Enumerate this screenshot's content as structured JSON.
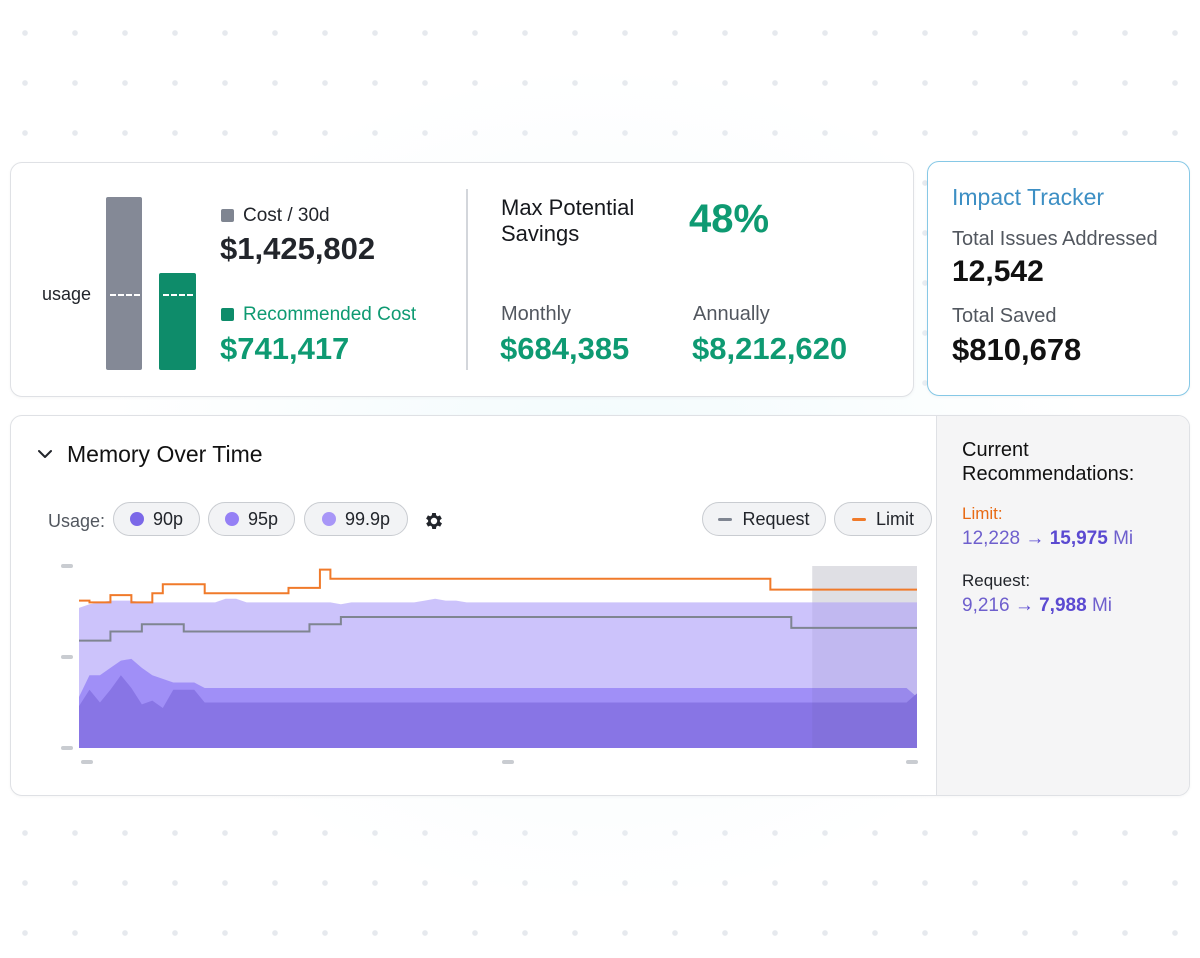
{
  "cost": {
    "bar_label": "usage",
    "cost_label": "Cost / 30d",
    "cost_value": "$1,425,802",
    "recommended_label": "Recommended Cost",
    "recommended_value": "$741,417",
    "colors": {
      "current": "#848996",
      "recommended": "#0e8c6a",
      "accent": "#0e9a72"
    }
  },
  "savings": {
    "title": "Max Potential Savings",
    "percent": "48%",
    "monthly_label": "Monthly",
    "monthly_value": "$684,385",
    "annual_label": "Annually",
    "annual_value": "$8,212,620"
  },
  "impact": {
    "title": "Impact Tracker",
    "issues_label": "Total Issues Addressed",
    "issues_value": "12,542",
    "saved_label": "Total Saved",
    "saved_value": "$810,678",
    "accent": "#3d8fc4"
  },
  "memory": {
    "title": "Memory Over Time",
    "usage_label": "Usage:",
    "percentiles": [
      {
        "label": "90p",
        "color": "#7b68e8"
      },
      {
        "label": "95p",
        "color": "#9580f5"
      },
      {
        "label": "99.9p",
        "color": "#a896f7"
      }
    ],
    "legend": [
      {
        "label": "Request",
        "color": "#7f8591"
      },
      {
        "label": "Limit",
        "color": "#f07a2a"
      }
    ],
    "recommendations": {
      "title": "Current Recommendations:",
      "limit_label": "Limit:",
      "limit_from": "12,228",
      "limit_to": "15,975",
      "limit_unit": "Mi",
      "request_label": "Request:",
      "request_from": "9,216",
      "request_to": "7,988",
      "request_unit": "Mi",
      "arrow": "→"
    }
  },
  "chart_data": {
    "type": "area",
    "title": "Memory Over Time",
    "xlabel": "",
    "ylabel": "",
    "x_ticks": [
      "",
      "",
      ""
    ],
    "y_ticks": [
      "",
      "",
      ""
    ],
    "ylim": [
      0,
      100
    ],
    "x": [
      0,
      1,
      2,
      3,
      4,
      5,
      6,
      7,
      8,
      9,
      10,
      11,
      12,
      13,
      14,
      15,
      16,
      17,
      18,
      19,
      20,
      21,
      22,
      23,
      24,
      25,
      26,
      27,
      28,
      29,
      30,
      31,
      32,
      33,
      34,
      35,
      36,
      37,
      38,
      39,
      40,
      41,
      42,
      43,
      44,
      45,
      46,
      47,
      48,
      49,
      50,
      51,
      52,
      53,
      54,
      55,
      56,
      57,
      58,
      59,
      60,
      61,
      62,
      63,
      64,
      65,
      66,
      67,
      68,
      69,
      70,
      71,
      72,
      73,
      74,
      75,
      76,
      77,
      78,
      79,
      80
    ],
    "shaded_region": [
      70,
      80
    ],
    "series": [
      {
        "name": "99.9p",
        "color": "#c9c0fb",
        "values": [
          77,
          79,
          80,
          81,
          81,
          81,
          80,
          80,
          80,
          80,
          80,
          80,
          80,
          80,
          82,
          82,
          80,
          80,
          80,
          80,
          80,
          80,
          80,
          80,
          80,
          79,
          80,
          80,
          80,
          80,
          80,
          80,
          80,
          81,
          82,
          81,
          81,
          80,
          80,
          80,
          80,
          80,
          80,
          80,
          80,
          80,
          80,
          80,
          80,
          80,
          80,
          80,
          80,
          80,
          80,
          80,
          80,
          80,
          80,
          80,
          80,
          80,
          80,
          80,
          80,
          80,
          80,
          80,
          80,
          80,
          80,
          80,
          80,
          80,
          80,
          80,
          80,
          80,
          80,
          80,
          80
        ]
      },
      {
        "name": "95p",
        "color": "#9d8cf7",
        "values": [
          28,
          40,
          40,
          44,
          48,
          49,
          44,
          40,
          38,
          36,
          36,
          36,
          33,
          33,
          33,
          33,
          33,
          33,
          33,
          33,
          33,
          33,
          33,
          33,
          33,
          33,
          33,
          33,
          33,
          33,
          33,
          33,
          33,
          33,
          33,
          33,
          33,
          33,
          33,
          33,
          33,
          33,
          33,
          33,
          33,
          33,
          33,
          33,
          33,
          33,
          33,
          33,
          33,
          33,
          33,
          33,
          33,
          33,
          33,
          33,
          33,
          33,
          33,
          33,
          33,
          33,
          33,
          33,
          33,
          33,
          33,
          33,
          33,
          33,
          33,
          33,
          33,
          33,
          33,
          33,
          28
        ]
      },
      {
        "name": "90p",
        "color": "#8774e4",
        "values": [
          23,
          32,
          25,
          32,
          40,
          33,
          24,
          26,
          22,
          32,
          32,
          32,
          25,
          25,
          25,
          25,
          25,
          25,
          25,
          25,
          25,
          25,
          25,
          25,
          25,
          25,
          25,
          25,
          25,
          25,
          25,
          25,
          25,
          25,
          25,
          25,
          25,
          25,
          25,
          25,
          25,
          25,
          25,
          25,
          25,
          25,
          25,
          25,
          25,
          25,
          25,
          25,
          25,
          25,
          25,
          25,
          25,
          25,
          25,
          25,
          25,
          25,
          25,
          25,
          25,
          25,
          25,
          25,
          25,
          25,
          25,
          25,
          25,
          25,
          25,
          25,
          25,
          25,
          25,
          25,
          30
        ]
      },
      {
        "name": "Request",
        "color": "#7f8591",
        "values": [
          59,
          59,
          59,
          64,
          64,
          64,
          68,
          68,
          68,
          68,
          64,
          64,
          64,
          64,
          64,
          64,
          64,
          64,
          64,
          64,
          64,
          64,
          68,
          68,
          68,
          72,
          72,
          72,
          72,
          72,
          72,
          72,
          72,
          72,
          72,
          72,
          72,
          72,
          72,
          72,
          72,
          72,
          72,
          72,
          72,
          72,
          72,
          72,
          72,
          72,
          72,
          72,
          72,
          72,
          72,
          72,
          72,
          72,
          72,
          72,
          72,
          72,
          72,
          72,
          72,
          72,
          72,
          72,
          66,
          66,
          66,
          66,
          66,
          66,
          66,
          66,
          66,
          66,
          66,
          66,
          66
        ]
      },
      {
        "name": "Limit",
        "color": "#f07a2a",
        "values": [
          81,
          80,
          80,
          84,
          84,
          80,
          80,
          85,
          90,
          90,
          90,
          90,
          85,
          85,
          85,
          85,
          85,
          85,
          85,
          85,
          88,
          88,
          88,
          98,
          93,
          93,
          93,
          93,
          93,
          93,
          93,
          93,
          93,
          93,
          93,
          93,
          93,
          93,
          93,
          93,
          93,
          93,
          93,
          93,
          93,
          93,
          93,
          93,
          93,
          93,
          93,
          93,
          93,
          93,
          93,
          93,
          93,
          93,
          93,
          93,
          93,
          93,
          93,
          93,
          93,
          93,
          87,
          87,
          87,
          87,
          87,
          87,
          87,
          87,
          87,
          87,
          87,
          87,
          87,
          87,
          87
        ]
      }
    ]
  }
}
